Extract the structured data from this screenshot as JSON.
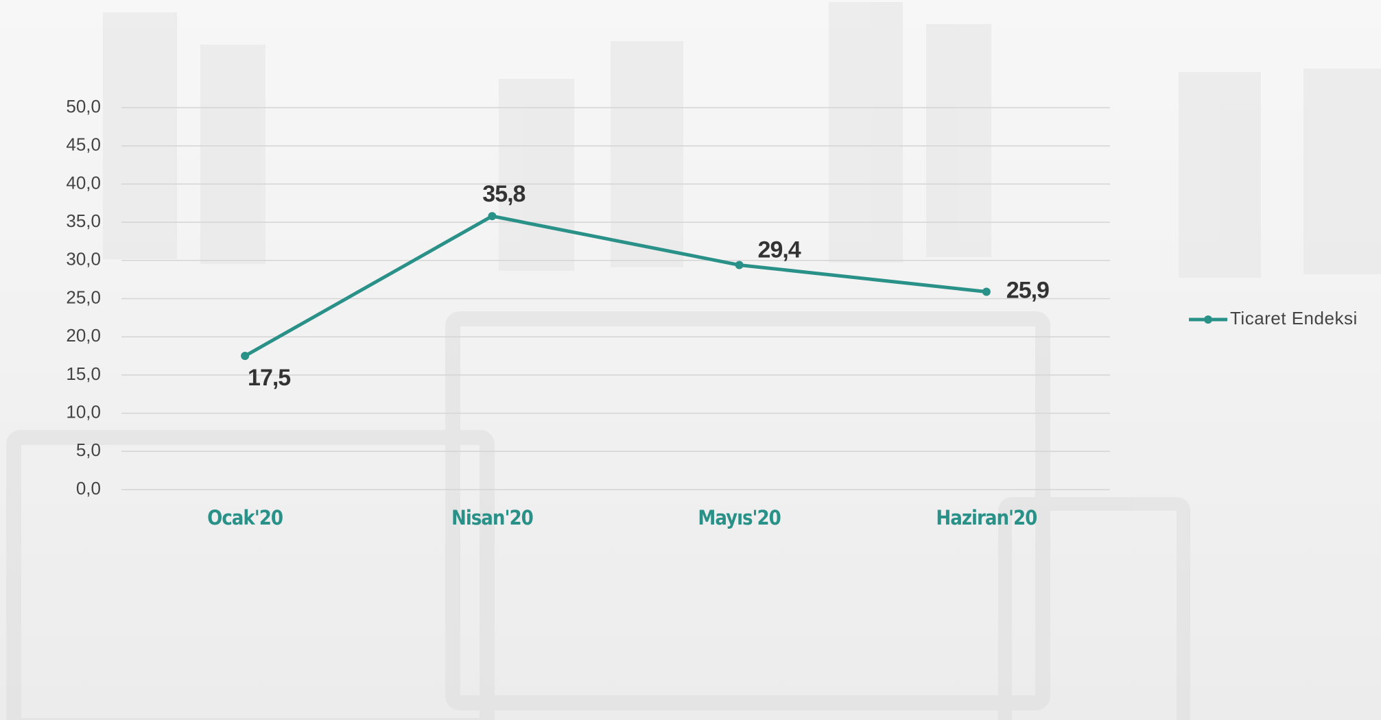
{
  "chart_data": {
    "type": "line",
    "categories": [
      "Ocak'20",
      "Nisan'20",
      "Mayıs'20",
      "Haziran'20"
    ],
    "series": [
      {
        "name": "Ticaret Endeksi",
        "color": "#2a9188",
        "values": [
          17.5,
          35.8,
          29.4,
          25.9
        ],
        "value_labels": [
          "17,5",
          "35,8",
          "29,4",
          "25,9"
        ]
      }
    ],
    "ylim": [
      0,
      50
    ],
    "yticks": [
      {
        "value": 0,
        "label": "0,0"
      },
      {
        "value": 5,
        "label": "5,0"
      },
      {
        "value": 10,
        "label": "10,0"
      },
      {
        "value": 15,
        "label": "15,0"
      },
      {
        "value": 20,
        "label": "20,0"
      },
      {
        "value": 25,
        "label": "25,0"
      },
      {
        "value": 30,
        "label": "30,0"
      },
      {
        "value": 35,
        "label": "35,0"
      },
      {
        "value": 40,
        "label": "40,0"
      },
      {
        "value": 45,
        "label": "45,0"
      },
      {
        "value": 50,
        "label": "50,0"
      }
    ],
    "grid": true,
    "legend": "right"
  }
}
